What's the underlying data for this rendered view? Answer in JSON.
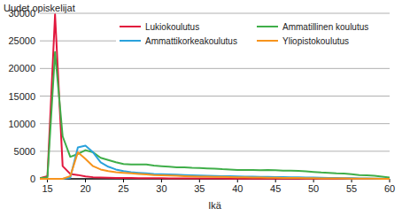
{
  "chart_data": {
    "type": "line",
    "y_label": "Uudet opiskelijat",
    "x_label": "Ikä",
    "x": [
      14,
      15,
      16,
      17,
      18,
      19,
      20,
      21,
      22,
      23,
      24,
      25,
      26,
      27,
      28,
      29,
      30,
      31,
      32,
      33,
      34,
      35,
      36,
      37,
      38,
      39,
      40,
      41,
      42,
      43,
      44,
      45,
      46,
      47,
      48,
      49,
      50,
      51,
      52,
      53,
      54,
      55,
      56,
      57,
      58,
      59,
      60
    ],
    "series": [
      {
        "name": "Lukiokoulutus",
        "color": "#e2173d",
        "values": [
          100,
          500,
          29800,
          2300,
          900,
          700,
          450,
          300,
          250,
          200,
          180,
          160,
          150,
          140,
          130,
          120,
          110,
          100,
          95,
          90,
          85,
          80,
          75,
          70,
          65,
          60,
          55,
          50,
          48,
          46,
          44,
          42,
          40,
          38,
          36,
          34,
          32,
          30,
          28,
          26,
          24,
          22,
          20,
          18,
          16,
          14,
          12
        ]
      },
      {
        "name": "Ammatillinen koulutus",
        "color": "#3fae49",
        "values": [
          100,
          300,
          23000,
          7700,
          4000,
          4500,
          5200,
          4800,
          3800,
          3400,
          3000,
          2700,
          2600,
          2600,
          2600,
          2400,
          2300,
          2200,
          2100,
          2100,
          2000,
          1950,
          1900,
          1850,
          1750,
          1700,
          1600,
          1600,
          1600,
          1550,
          1600,
          1550,
          1500,
          1500,
          1450,
          1350,
          1250,
          1150,
          1100,
          1000,
          950,
          850,
          700,
          650,
          550,
          400,
          250
        ]
      },
      {
        "name": "Ammattikorkeakoulutus",
        "color": "#2aa2dc",
        "values": [
          0,
          0,
          0,
          0,
          200,
          5700,
          6000,
          4800,
          3000,
          2200,
          1700,
          1400,
          1200,
          1100,
          1000,
          900,
          850,
          800,
          750,
          700,
          650,
          600,
          550,
          520,
          500,
          470,
          450,
          420,
          400,
          380,
          360,
          340,
          320,
          300,
          280,
          250,
          230,
          200,
          180,
          160,
          140,
          120,
          100,
          80,
          60,
          40,
          20
        ]
      },
      {
        "name": "Yliopistokoulutus",
        "color": "#f7941d",
        "values": [
          0,
          0,
          0,
          0,
          500,
          4800,
          3600,
          2300,
          1700,
          1400,
          1200,
          1100,
          1000,
          900,
          800,
          700,
          650,
          600,
          550,
          500,
          450,
          420,
          400,
          370,
          350,
          330,
          300,
          280,
          260,
          240,
          220,
          200,
          180,
          160,
          150,
          130,
          120,
          100,
          90,
          80,
          70,
          60,
          50,
          40,
          30,
          20,
          10
        ]
      }
    ],
    "xlim": [
      14,
      60
    ],
    "xticks": [
      15,
      20,
      25,
      30,
      35,
      40,
      45,
      50,
      55,
      60
    ],
    "ylim": [
      0,
      30000
    ],
    "yticks": [
      0,
      5000,
      10000,
      15000,
      20000,
      25000,
      30000
    ],
    "grid": true,
    "legend": "upper right"
  }
}
